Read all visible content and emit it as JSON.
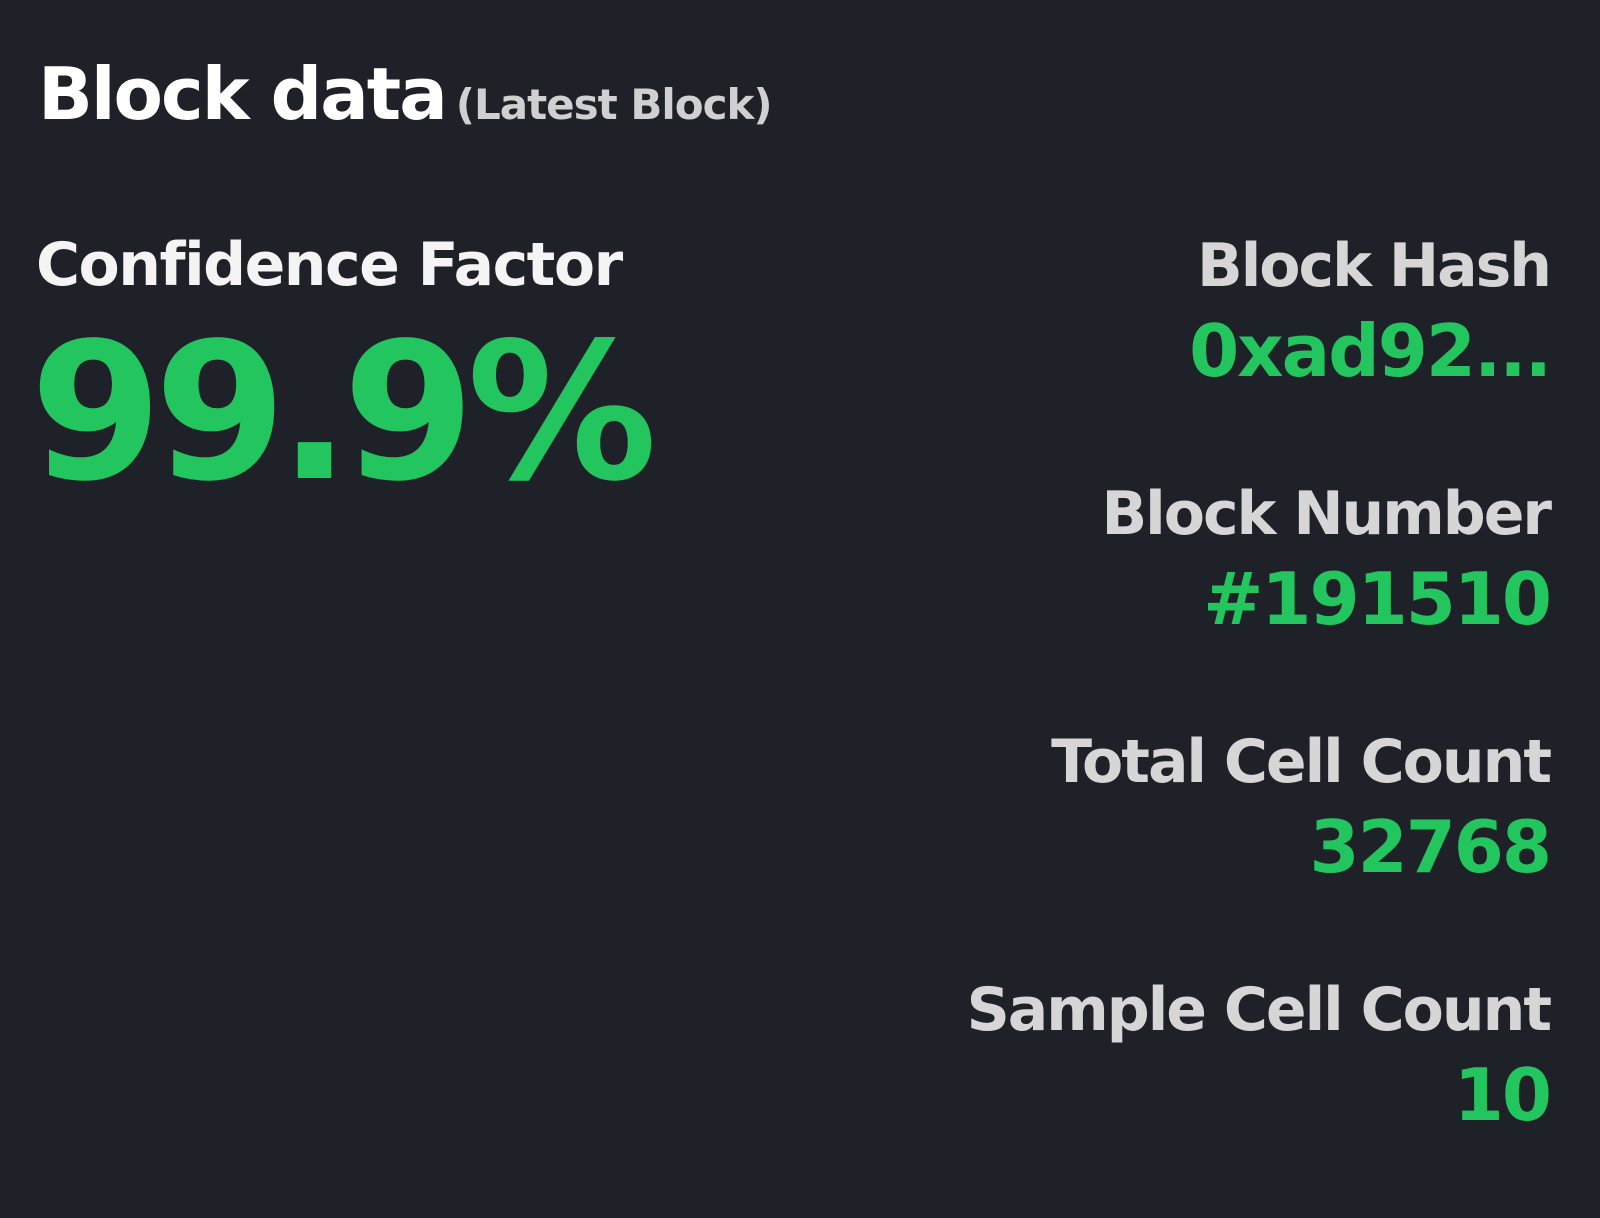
{
  "header": {
    "title": "Block data",
    "subtitle": "(Latest Block)"
  },
  "confidence": {
    "label": "Confidence Factor",
    "value": "99.9%"
  },
  "stats": [
    {
      "label": "Block Hash",
      "value": "0xad92..."
    },
    {
      "label": "Block Number",
      "value": "#191510"
    },
    {
      "label": "Total Cell Count",
      "value": "32768"
    },
    {
      "label": "Sample Cell Count",
      "value": "10"
    }
  ],
  "colors": {
    "background": "#1f2129",
    "accent": "#22c55e",
    "title": "#ffffff",
    "label": "#d6d6d6"
  }
}
